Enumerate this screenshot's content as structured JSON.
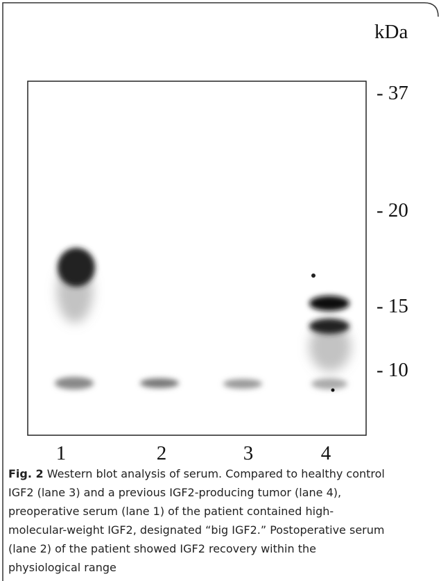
{
  "figure": {
    "unit_label": "kDa",
    "markers": [
      "- 37",
      "- 20",
      "- 15",
      "- 10"
    ],
    "lanes": [
      "1",
      "2",
      "3",
      "4"
    ]
  },
  "caption": {
    "label": "Fig. 2",
    "lines": [
      " Western blot analysis of serum. Compared to healthy control",
      "IGF2 (lane 3) and a previous IGF2-producing tumor (lane 4),",
      "preoperative serum (lane 1) of the patient contained high-",
      "molecular-weight IGF2, designated “big IGF2.” Postoperative serum",
      "(lane 2) of the patient showed IGF2 recovery within the",
      "physiological range"
    ]
  }
}
